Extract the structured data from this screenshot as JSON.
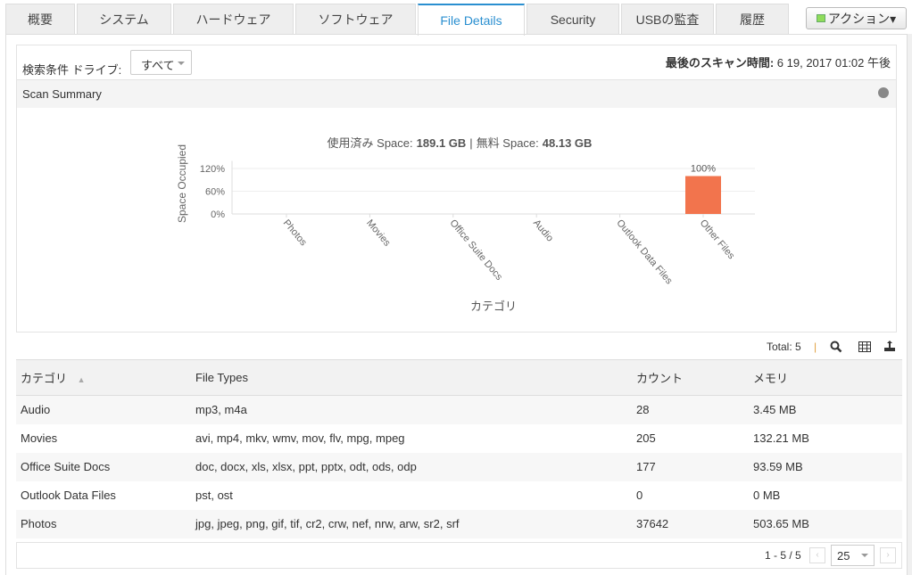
{
  "tabs": [
    {
      "label": "概要",
      "w": 78
    },
    {
      "label": "システム",
      "w": 106
    },
    {
      "label": "ハードウェア",
      "w": 135
    },
    {
      "label": "ソフトウェア",
      "w": 135
    },
    {
      "label": "File Details",
      "w": 120,
      "active": true
    },
    {
      "label": "Security",
      "w": 104
    },
    {
      "label": "USBの監査",
      "w": 104
    },
    {
      "label": "履歴",
      "w": 82
    }
  ],
  "action_label": "アクション▾",
  "filter": {
    "label": "検索条件 ドライブ:",
    "value": "すべて"
  },
  "scan": {
    "label": "最後のスキャン時間:",
    "value": "6 19, 2017 01:02 午後"
  },
  "summary_title": "Scan Summary",
  "chart_data": {
    "type": "bar",
    "title_used_label": "使用済み Space:",
    "title_used": "189.1 GB",
    "title_sep": "|",
    "title_free_label": "無料 Space:",
    "title_free": "48.13 GB",
    "xlabel": "カテゴリ",
    "ylabel": "Space Occupied",
    "ylim": [
      0,
      140
    ],
    "yticks": [
      "0%",
      "60%",
      "120%"
    ],
    "categories": [
      "Photos",
      "Movies",
      "Office Suite Docs",
      "Audio",
      "Outlook Data Files",
      "Other Files"
    ],
    "values": [
      0,
      0,
      0,
      0,
      0,
      100
    ],
    "data_labels": [
      "",
      "",
      "",
      "",
      "",
      "100%"
    ],
    "bar_color": "#f2744d",
    "grid": true
  },
  "toolbar": {
    "total": "Total: 5"
  },
  "table": {
    "headers": [
      "カテゴリ",
      "File Types",
      "カウント",
      "メモリ"
    ],
    "rows": [
      [
        "Audio",
        "mp3, m4a",
        "28",
        "3.45 MB"
      ],
      [
        "Movies",
        "avi, mp4, mkv, wmv, mov, flv, mpg, mpeg",
        "205",
        "132.21 MB"
      ],
      [
        "Office Suite Docs",
        "doc, docx, xls, xlsx, ppt, pptx, odt, ods, odp",
        "177",
        "93.59 MB"
      ],
      [
        "Outlook Data Files",
        "pst, ost",
        "0",
        "0 MB"
      ],
      [
        "Photos",
        "jpg, jpeg, png, gif, tif, cr2, crw, nef, nrw, arw, sr2, srf",
        "37642",
        "503.65 MB"
      ]
    ]
  },
  "pager": {
    "range": "1 - 5 / 5",
    "per_page": "25"
  }
}
